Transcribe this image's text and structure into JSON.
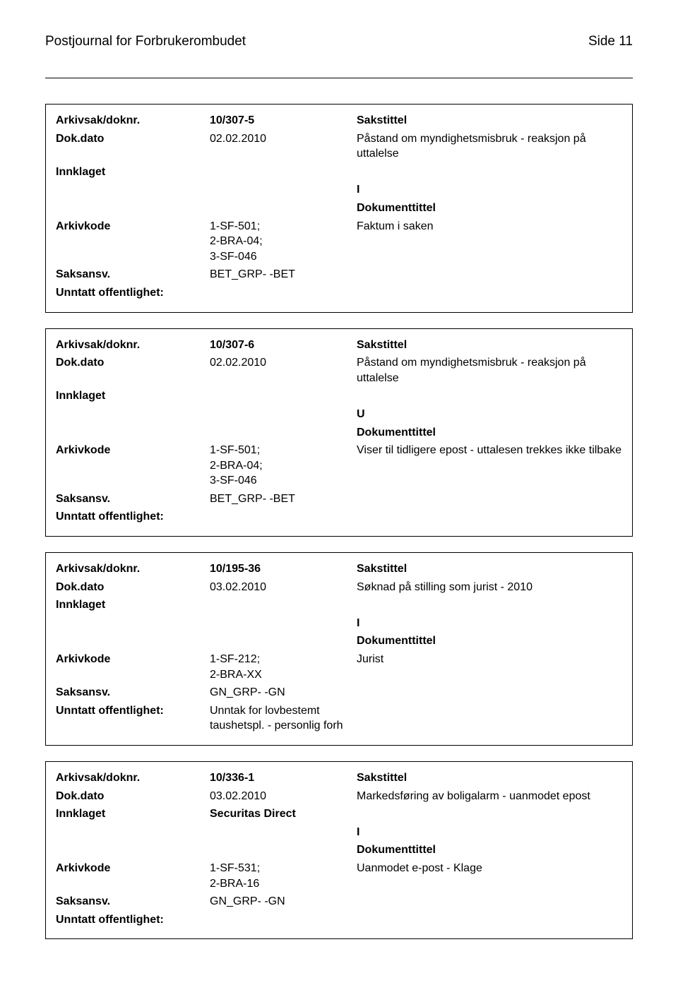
{
  "header": {
    "title": "Postjournal for Forbrukerombudet",
    "page_label": "Side 11"
  },
  "records": [
    {
      "doknr_label": "Arkivsak/doknr.",
      "doknr_value": "10/307-5",
      "sakstittel_label": "Sakstittel",
      "dato_label": "Dok.dato",
      "dato_value": "02.02.2010",
      "sakstittel_value": "Påstand om myndighetsmisbruk - reaksjon på uttalelse",
      "innklaget_label": "Innklaget",
      "innklaget_value": "",
      "type_code": "I",
      "dokumenttittel_label": "Dokumenttittel",
      "arkivkode_label": "Arkivkode",
      "arkivkode_value": "1-SF-501; 2-BRA-04; 3-SF-046",
      "dokumenttittel_value": "Faktum i saken",
      "saksansv_label": "Saksansv.",
      "saksansv_value": "BET_GRP- -BET",
      "unntatt_label": "Unntatt offentlighet:",
      "unntatt_value": ""
    },
    {
      "doknr_label": "Arkivsak/doknr.",
      "doknr_value": "10/307-6",
      "sakstittel_label": "Sakstittel",
      "dato_label": "Dok.dato",
      "dato_value": "02.02.2010",
      "sakstittel_value": "Påstand om myndighetsmisbruk - reaksjon på uttalelse",
      "innklaget_label": "Innklaget",
      "innklaget_value": "",
      "type_code": "U",
      "dokumenttittel_label": "Dokumenttittel",
      "arkivkode_label": "Arkivkode",
      "arkivkode_value": "1-SF-501; 2-BRA-04; 3-SF-046",
      "dokumenttittel_value": "Viser til tidligere epost - uttalesen trekkes ikke tilbake",
      "saksansv_label": "Saksansv.",
      "saksansv_value": "BET_GRP- -BET",
      "unntatt_label": "Unntatt offentlighet:",
      "unntatt_value": ""
    },
    {
      "doknr_label": "Arkivsak/doknr.",
      "doknr_value": "10/195-36",
      "sakstittel_label": "Sakstittel",
      "dato_label": "Dok.dato",
      "dato_value": "03.02.2010",
      "sakstittel_value": "Søknad på stilling som jurist - 2010",
      "innklaget_label": "Innklaget",
      "innklaget_value": "",
      "type_code": "I",
      "dokumenttittel_label": "Dokumenttittel",
      "arkivkode_label": "Arkivkode",
      "arkivkode_value": "1-SF-212; 2-BRA-XX",
      "dokumenttittel_value": "Jurist",
      "saksansv_label": "Saksansv.",
      "saksansv_value": "GN_GRP- -GN",
      "unntatt_label": "Unntatt offentlighet:",
      "unntatt_value": "Unntak for lovbestemt taushetspl. - personlig forh"
    },
    {
      "doknr_label": "Arkivsak/doknr.",
      "doknr_value": "10/336-1",
      "sakstittel_label": "Sakstittel",
      "dato_label": "Dok.dato",
      "dato_value": "03.02.2010",
      "sakstittel_value": "Markedsføring av boligalarm - uanmodet epost",
      "innklaget_label": "Innklaget",
      "innklaget_value": "Securitas Direct",
      "type_code": "I",
      "dokumenttittel_label": "Dokumenttittel",
      "arkivkode_label": "Arkivkode",
      "arkivkode_value": "1-SF-531; 2-BRA-16",
      "dokumenttittel_value": "Uanmodet e-post - Klage",
      "saksansv_label": "Saksansv.",
      "saksansv_value": "GN_GRP- -GN",
      "unntatt_label": "Unntatt offentlighet:",
      "unntatt_value": ""
    }
  ]
}
